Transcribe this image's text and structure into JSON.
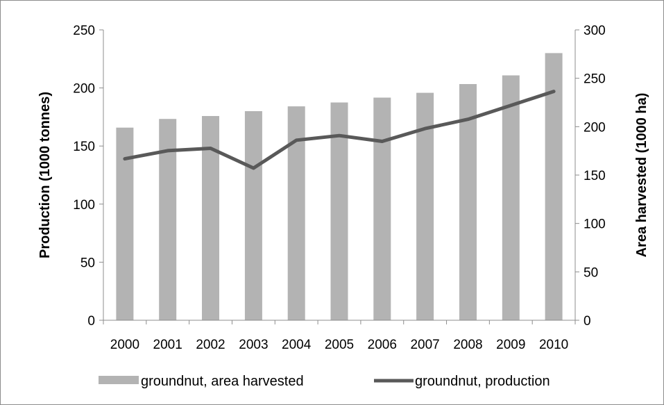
{
  "chart_data": {
    "type": "bar",
    "categories": [
      "2000",
      "2001",
      "2002",
      "2003",
      "2004",
      "2005",
      "2006",
      "2007",
      "2008",
      "2009",
      "2010"
    ],
    "series": [
      {
        "name": "groundnut, area harvested",
        "type": "bar",
        "axis": "right",
        "values": [
          199,
          208,
          211,
          216,
          221,
          225,
          230,
          235,
          244,
          253,
          276
        ]
      },
      {
        "name": "groundnut, production",
        "type": "line",
        "axis": "left",
        "values": [
          139,
          146,
          148,
          131,
          155,
          159,
          154,
          165,
          173,
          185,
          197
        ]
      }
    ],
    "ylabel": "Production (1000 tonnes)",
    "ylim": [
      0,
      250
    ],
    "yticks": [
      "0",
      "50",
      "100",
      "150",
      "200",
      "250"
    ],
    "y2label": "Area harvested (1000 ha)",
    "y2lim": [
      0,
      300
    ],
    "y2ticks": [
      "0",
      "50",
      "100",
      "150",
      "200",
      "250",
      "300"
    ],
    "grid": false,
    "legend_position": "bottom",
    "colors": {
      "bar": "#b3b3b3",
      "line": "#595959",
      "axis": "#8c8c8c"
    }
  }
}
